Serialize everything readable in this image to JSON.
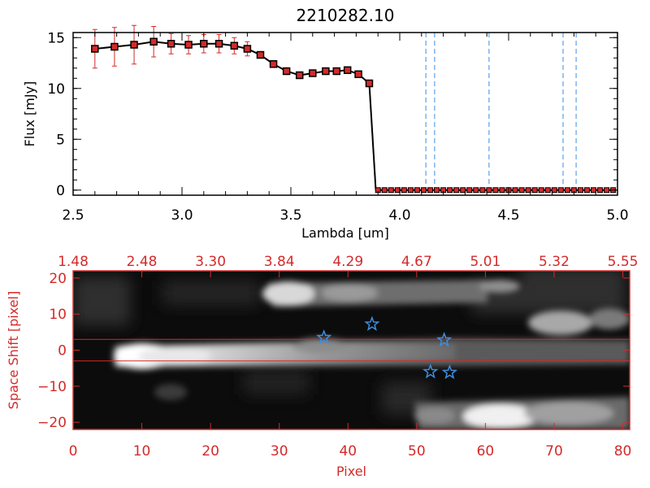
{
  "title": "2210282.10",
  "chart_data": [
    {
      "type": "line",
      "xlabel": "Lambda [um]",
      "ylabel": "Flux [mJy]",
      "xlim": [
        2.5,
        5.0
      ],
      "ylim": [
        -0.5,
        15.5
      ],
      "xticks": [
        2.5,
        3.0,
        3.5,
        4.0,
        4.5,
        5.0
      ],
      "xtick_labels": [
        "2.5",
        "3.0",
        "3.5",
        "4.0",
        "4.5",
        "5.0"
      ],
      "yticks": [
        0,
        5,
        10,
        15
      ],
      "ytick_labels": [
        "0",
        "5",
        "10",
        "15"
      ],
      "series": [
        {
          "line_color": "#000000",
          "marker_color": "#d42a2a",
          "x": [
            2.6,
            2.69,
            2.78,
            2.87,
            2.95,
            3.03,
            3.1,
            3.17,
            3.24,
            3.3,
            3.36,
            3.42,
            3.48,
            3.54,
            3.6,
            3.66,
            3.71,
            3.76,
            3.81,
            3.86
          ],
          "y": [
            13.9,
            14.1,
            14.3,
            14.6,
            14.4,
            14.3,
            14.4,
            14.4,
            14.2,
            13.9,
            13.3,
            12.4,
            11.7,
            11.3,
            11.5,
            11.7,
            11.7,
            11.8,
            11.4,
            10.5
          ],
          "yerr": [
            1.9,
            1.9,
            1.9,
            1.5,
            1.0,
            0.9,
            0.9,
            0.9,
            0.8,
            0.7,
            0,
            0,
            0,
            0,
            0,
            0,
            0,
            0,
            0,
            0
          ]
        },
        {
          "line_color": "#000000",
          "marker_color": "#d42a2a",
          "x": [
            3.86,
            3.89
          ],
          "y": [
            10.5,
            0.0
          ]
        }
      ],
      "zero_markers_x": [
        3.9,
        3.93,
        3.96,
        3.99,
        4.02,
        4.05,
        4.08,
        4.11,
        4.14,
        4.17,
        4.2,
        4.23,
        4.26,
        4.29,
        4.32,
        4.35,
        4.38,
        4.41,
        4.44,
        4.47,
        4.5,
        4.53,
        4.56,
        4.59,
        4.62,
        4.65,
        4.68,
        4.71,
        4.74,
        4.77,
        4.8,
        4.83,
        4.86,
        4.89,
        4.92,
        4.95,
        4.98
      ],
      "vlines_x": [
        4.12,
        4.16,
        4.41,
        4.75,
        4.81
      ],
      "vline_color": "#3d8ee0",
      "grid": false
    },
    {
      "type": "heatmap",
      "xlabel": "Pixel",
      "ylabel": "Space Shift [pixel]",
      "xlim": [
        0,
        81
      ],
      "ylim": [
        -22,
        22
      ],
      "xticks": [
        0,
        10,
        20,
        30,
        40,
        50,
        60,
        70,
        80
      ],
      "xtick_labels": [
        "0",
        "10",
        "20",
        "30",
        "40",
        "50",
        "60",
        "70",
        "80"
      ],
      "yticks": [
        -20,
        -10,
        0,
        10,
        20
      ],
      "ytick_labels": [
        "−20",
        "−10",
        "0",
        "10",
        "20"
      ],
      "top_tick_labels": [
        "1.48",
        "2.48",
        "3.30",
        "3.84",
        "4.29",
        "4.67",
        "5.01",
        "5.32",
        "5.55"
      ],
      "hlines_y": [
        3,
        -3
      ],
      "hline_color": "#d42a2a",
      "stars": [
        {
          "x": 36.5,
          "y": 3.5
        },
        {
          "x": 43.5,
          "y": 7.2
        },
        {
          "x": 54.0,
          "y": 2.8
        },
        {
          "x": 52.0,
          "y": -6.0
        },
        {
          "x": 54.8,
          "y": -6.2
        }
      ],
      "star_color": "#3d8ee0",
      "frame_color": "#d42a2a",
      "label_color": "#d42a2a"
    }
  ]
}
